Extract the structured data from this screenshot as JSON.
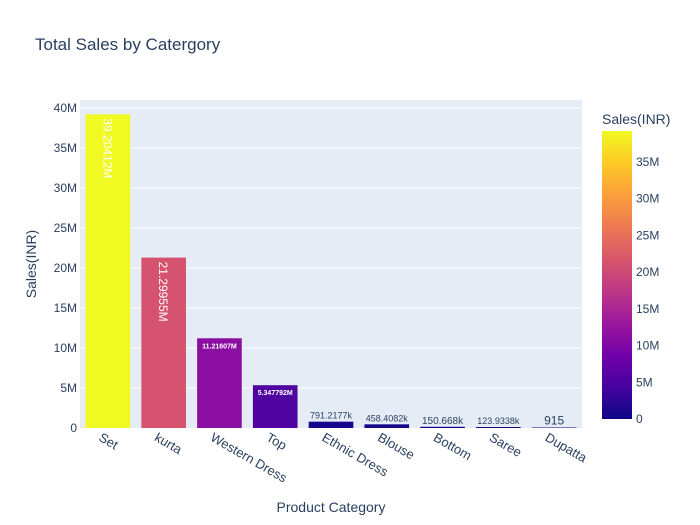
{
  "chart_data": {
    "type": "bar",
    "title": "Total Sales by Catergory",
    "xlabel": "Product Category",
    "ylabel": "Sales(INR)",
    "categories": [
      "Set",
      "kurta",
      "Western Dress",
      "Top",
      "Ethnic Dress",
      "Blouse",
      "Bottom",
      "Saree",
      "Dupatta"
    ],
    "values": [
      39204124,
      21299547,
      11216073,
      5347792,
      791217.7,
      458408.2,
      150668,
      123933.8,
      915
    ],
    "data_labels": [
      "39.20412M",
      "21.29955M",
      "11.21607M",
      "5.347792M",
      "791.2177k",
      "458.4082k",
      "150.668k",
      "123.9338k",
      "915"
    ],
    "ylim": [
      0,
      41000000
    ],
    "yticks": [
      0,
      5000000,
      10000000,
      15000000,
      20000000,
      25000000,
      30000000,
      35000000,
      40000000
    ],
    "ytick_labels": [
      "0",
      "5M",
      "10M",
      "15M",
      "20M",
      "25M",
      "30M",
      "35M",
      "40M"
    ],
    "grid": true,
    "colorbar": {
      "title": "Sales(INR)",
      "colorscale": "Plasma",
      "range": [
        0,
        39204124
      ],
      "ticks": [
        0,
        5000000,
        10000000,
        15000000,
        20000000,
        25000000,
        30000000,
        35000000
      ],
      "tick_labels": [
        "0",
        "5M",
        "10M",
        "15M",
        "20M",
        "25M",
        "30M",
        "35M"
      ]
    },
    "colors": {
      "plot_bg": "#e5ecf6",
      "grid": "#ffffff",
      "text": "#2a3f5f"
    }
  }
}
